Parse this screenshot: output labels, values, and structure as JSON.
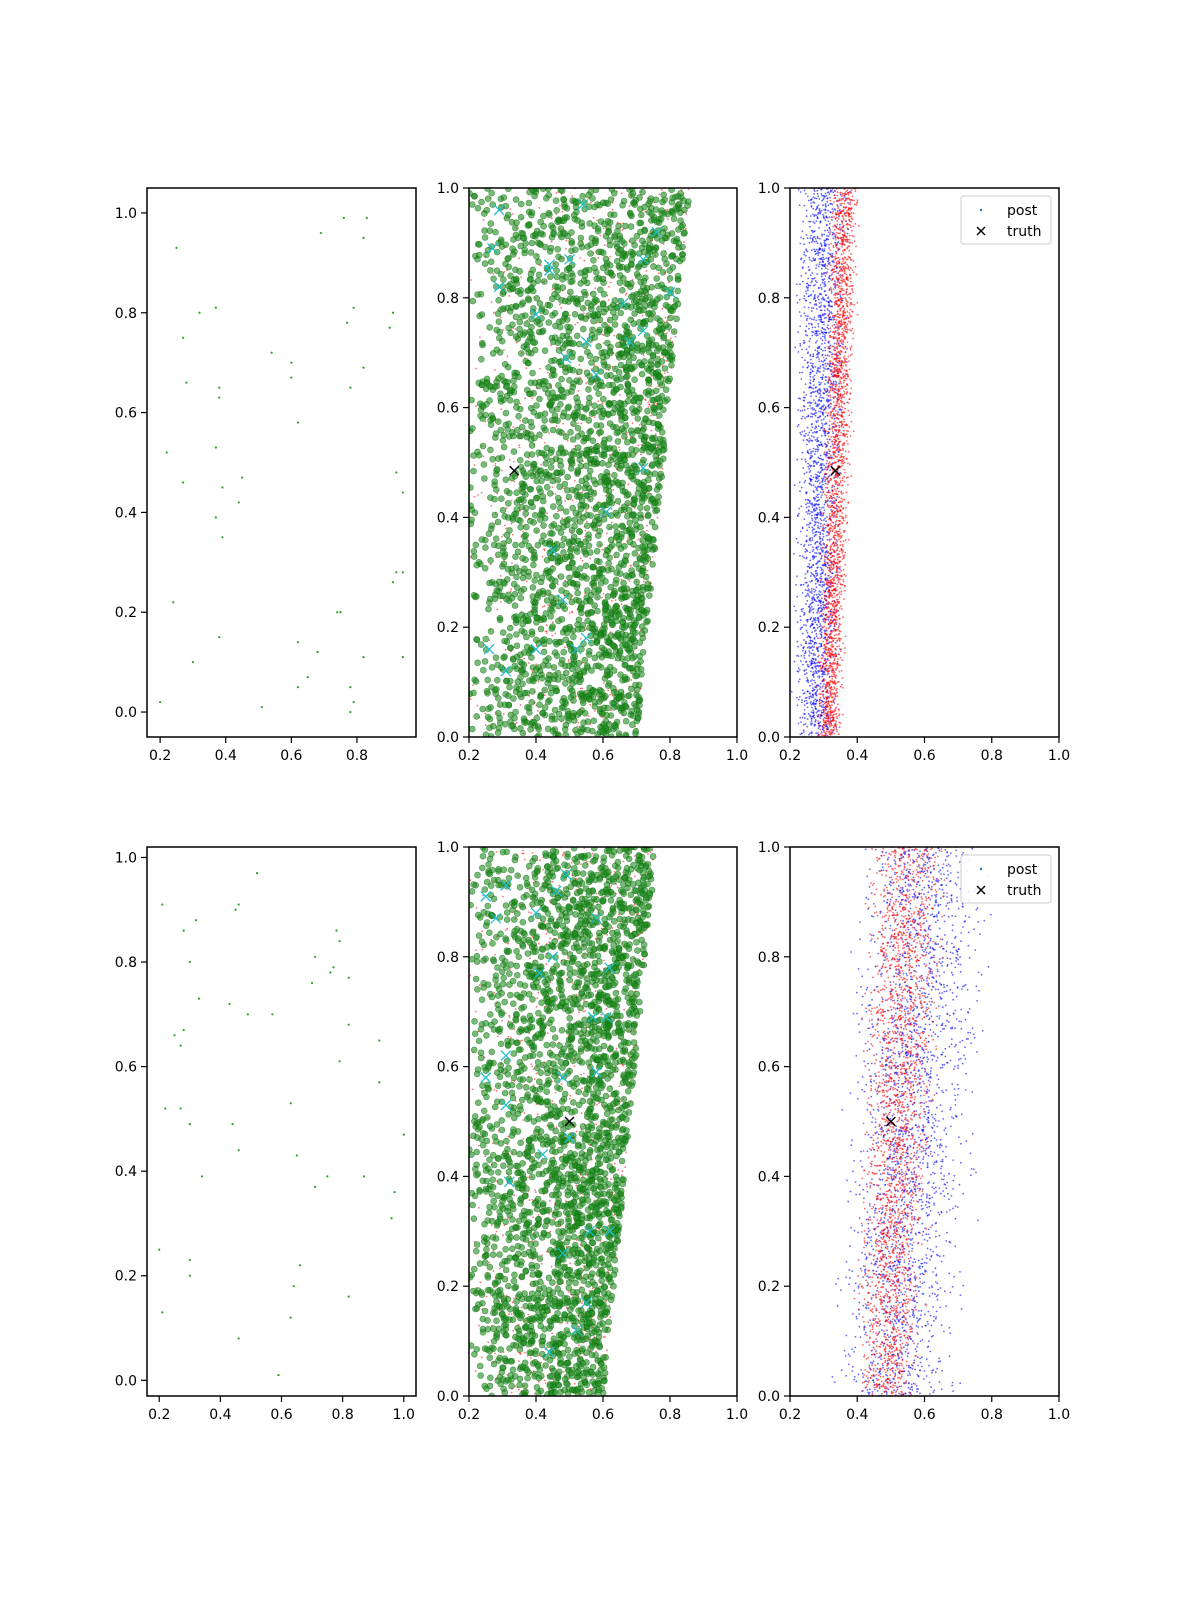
{
  "chart_data": [
    {
      "type": "scatter",
      "title": "",
      "xlabel": "",
      "ylabel": "",
      "xlim": [
        0.16,
        0.98
      ],
      "ylim": [
        -0.05,
        1.05
      ],
      "xticks": [
        "0.2",
        "0.4",
        "0.6",
        "0.8"
      ],
      "yticks": [
        "0.0",
        "0.2",
        "0.4",
        "0.6",
        "0.8",
        "1.0"
      ],
      "series": [
        {
          "color": "#2ca02c",
          "marker": "dot-small",
          "points": [
            [
              0.25,
              0.93
            ],
            [
              0.69,
              0.96
            ],
            [
              0.76,
              0.99
            ],
            [
              0.83,
              0.99
            ],
            [
              0.82,
              0.95
            ],
            [
              0.37,
              0.81
            ],
            [
              0.32,
              0.8
            ],
            [
              0.79,
              0.81
            ],
            [
              0.91,
              0.8
            ],
            [
              0.27,
              0.75
            ],
            [
              0.77,
              0.78
            ],
            [
              0.9,
              0.77
            ],
            [
              0.54,
              0.72
            ],
            [
              0.6,
              0.7
            ],
            [
              0.28,
              0.66
            ],
            [
              0.6,
              0.67
            ],
            [
              0.38,
              0.65
            ],
            [
              0.38,
              0.63
            ],
            [
              0.78,
              0.65
            ],
            [
              0.82,
              0.69
            ],
            [
              0.62,
              0.58
            ],
            [
              0.22,
              0.52
            ],
            [
              0.37,
              0.53
            ],
            [
              0.92,
              0.48
            ],
            [
              0.27,
              0.46
            ],
            [
              0.45,
              0.47
            ],
            [
              0.39,
              0.45
            ],
            [
              0.94,
              0.44
            ],
            [
              0.44,
              0.42
            ],
            [
              0.37,
              0.39
            ],
            [
              0.39,
              0.35
            ],
            [
              0.92,
              0.28
            ],
            [
              0.94,
              0.28
            ],
            [
              0.91,
              0.26
            ],
            [
              0.24,
              0.22
            ],
            [
              0.74,
              0.2
            ],
            [
              0.75,
              0.2
            ],
            [
              0.38,
              0.15
            ],
            [
              0.62,
              0.14
            ],
            [
              0.68,
              0.12
            ],
            [
              0.3,
              0.1
            ],
            [
              0.82,
              0.11
            ],
            [
              0.94,
              0.11
            ],
            [
              0.65,
              0.07
            ],
            [
              0.62,
              0.05
            ],
            [
              0.78,
              0.05
            ],
            [
              0.2,
              0.02
            ],
            [
              0.51,
              0.01
            ],
            [
              0.79,
              0.02
            ],
            [
              0.78,
              0.0
            ]
          ]
        }
      ]
    },
    {
      "type": "scatter",
      "title": "",
      "xlabel": "",
      "ylabel": "",
      "xlim": [
        0.2,
        1.0
      ],
      "ylim": [
        0.0,
        1.0
      ],
      "xticks": [
        "0.2",
        "0.4",
        "0.6",
        "0.8",
        "1.0"
      ],
      "yticks": [
        "0.0",
        "0.2",
        "0.4",
        "0.6",
        "0.8",
        "1.0"
      ],
      "clouds": [
        {
          "color": "#ff0000",
          "n": 900,
          "size": 0.9,
          "opacity": 0.55,
          "y_range": [
            0,
            1
          ],
          "x_left": [
            0.2,
            0.2
          ],
          "x_right": [
            0.7,
            0.86
          ],
          "skew": 0.6,
          "seed": 11
        },
        {
          "color": "#1e8c1e",
          "stroke": "#0b6b0b",
          "n": 2600,
          "size": 3.0,
          "opacity": 0.6,
          "y_range": [
            0,
            1
          ],
          "x_left": [
            0.2,
            0.2
          ],
          "x_right": [
            0.7,
            0.86
          ],
          "skew": 0.55,
          "seed": 23
        }
      ],
      "series": [
        {
          "color": "#17becf",
          "marker": "x",
          "points": [
            [
              0.29,
              0.96
            ],
            [
              0.27,
              0.89
            ],
            [
              0.29,
              0.82
            ],
            [
              0.54,
              0.97
            ],
            [
              0.44,
              0.86
            ],
            [
              0.44,
              0.85
            ],
            [
              0.5,
              0.87
            ],
            [
              0.4,
              0.77
            ],
            [
              0.66,
              0.79
            ],
            [
              0.72,
              0.87
            ],
            [
              0.76,
              0.92
            ],
            [
              0.72,
              0.74
            ],
            [
              0.8,
              0.81
            ],
            [
              0.55,
              0.72
            ],
            [
              0.49,
              0.69
            ],
            [
              0.58,
              0.66
            ],
            [
              0.68,
              0.72
            ],
            [
              0.45,
              0.34
            ],
            [
              0.48,
              0.25
            ],
            [
              0.26,
              0.16
            ],
            [
              0.31,
              0.12
            ],
            [
              0.4,
              0.16
            ],
            [
              0.52,
              0.16
            ],
            [
              0.55,
              0.18
            ],
            [
              0.61,
              0.41
            ],
            [
              0.72,
              0.49
            ]
          ]
        },
        {
          "name": "truth",
          "color": "#000000",
          "marker": "x",
          "points": [
            [
              0.335,
              0.485
            ]
          ]
        }
      ]
    },
    {
      "type": "scatter",
      "title": "",
      "xlabel": "",
      "ylabel": "",
      "xlim": [
        0.2,
        1.0
      ],
      "ylim": [
        0.0,
        1.0
      ],
      "xticks": [
        "0.2",
        "0.4",
        "0.6",
        "0.8",
        "1.0"
      ],
      "yticks": [
        "0.0",
        "0.2",
        "0.4",
        "0.6",
        "0.8",
        "1.0"
      ],
      "legend": {
        "position": "top-right",
        "entries": [
          {
            "label": "post",
            "marker": "dot",
            "color": "#1f77b4"
          },
          {
            "label": "truth",
            "marker": "x",
            "color": "#000000"
          }
        ]
      },
      "clouds": [
        {
          "color": "#0000ff",
          "n": 2200,
          "size": 0.9,
          "opacity": 0.6,
          "y_range": [
            0,
            1
          ],
          "x_left": [
            0.2,
            0.2
          ],
          "x_right": [
            0.35,
            0.4
          ],
          "skew": 0.0,
          "seed": 31
        },
        {
          "color": "#ff0000",
          "n": 2200,
          "size": 0.9,
          "opacity": 0.6,
          "y_range": [
            0,
            1
          ],
          "x_left": [
            0.27,
            0.31
          ],
          "x_right": [
            0.36,
            0.42
          ],
          "skew": 0.0,
          "seed": 37
        }
      ],
      "series": [
        {
          "name": "truth",
          "color": "#000000",
          "marker": "x",
          "points": [
            [
              0.335,
              0.485
            ]
          ]
        }
      ]
    },
    {
      "type": "scatter",
      "title": "",
      "xlabel": "",
      "ylabel": "",
      "xlim": [
        0.16,
        1.04
      ],
      "ylim": [
        -0.03,
        1.02
      ],
      "xticks": [
        "0.2",
        "0.4",
        "0.6",
        "0.8",
        "1.0"
      ],
      "yticks": [
        "0.0",
        "0.2",
        "0.4",
        "0.6",
        "0.8",
        "1.0"
      ],
      "series": [
        {
          "color": "#2ca02c",
          "marker": "dot-small",
          "points": [
            [
              0.52,
              0.97
            ],
            [
              0.46,
              0.91
            ],
            [
              0.45,
              0.9
            ],
            [
              0.21,
              0.91
            ],
            [
              0.32,
              0.88
            ],
            [
              0.78,
              0.86
            ],
            [
              0.28,
              0.86
            ],
            [
              0.79,
              0.84
            ],
            [
              0.3,
              0.8
            ],
            [
              0.71,
              0.81
            ],
            [
              0.76,
              0.78
            ],
            [
              0.77,
              0.79
            ],
            [
              0.82,
              0.77
            ],
            [
              0.7,
              0.76
            ],
            [
              0.33,
              0.73
            ],
            [
              0.43,
              0.72
            ],
            [
              0.57,
              0.7
            ],
            [
              0.49,
              0.7
            ],
            [
              0.82,
              0.68
            ],
            [
              0.25,
              0.66
            ],
            [
              0.28,
              0.67
            ],
            [
              0.27,
              0.64
            ],
            [
              0.92,
              0.65
            ],
            [
              0.79,
              0.61
            ],
            [
              0.92,
              0.57
            ],
            [
              0.22,
              0.52
            ],
            [
              0.27,
              0.52
            ],
            [
              0.63,
              0.53
            ],
            [
              0.3,
              0.49
            ],
            [
              0.44,
              0.49
            ],
            [
              1.0,
              0.47
            ],
            [
              0.46,
              0.44
            ],
            [
              0.65,
              0.43
            ],
            [
              0.71,
              0.37
            ],
            [
              0.75,
              0.39
            ],
            [
              0.87,
              0.39
            ],
            [
              0.34,
              0.39
            ],
            [
              0.97,
              0.36
            ],
            [
              0.96,
              0.31
            ],
            [
              0.2,
              0.25
            ],
            [
              0.3,
              0.23
            ],
            [
              0.66,
              0.22
            ],
            [
              0.3,
              0.2
            ],
            [
              0.64,
              0.18
            ],
            [
              0.82,
              0.16
            ],
            [
              0.21,
              0.13
            ],
            [
              0.63,
              0.12
            ],
            [
              0.46,
              0.08
            ],
            [
              0.59,
              0.01
            ]
          ]
        }
      ]
    },
    {
      "type": "scatter",
      "title": "",
      "xlabel": "",
      "ylabel": "",
      "xlim": [
        0.2,
        1.0
      ],
      "ylim": [
        0.0,
        1.0
      ],
      "xticks": [
        "0.2",
        "0.4",
        "0.6",
        "0.8",
        "1.0"
      ],
      "yticks": [
        "0.0",
        "0.2",
        "0.4",
        "0.6",
        "0.8",
        "1.0"
      ],
      "clouds": [
        {
          "color": "#ff0000",
          "n": 900,
          "size": 0.9,
          "opacity": 0.55,
          "y_range": [
            0,
            1
          ],
          "x_left": [
            0.2,
            0.2
          ],
          "x_right": [
            0.6,
            0.76
          ],
          "skew": 0.6,
          "seed": 41
        },
        {
          "color": "#1e8c1e",
          "stroke": "#0b6b0b",
          "n": 2600,
          "size": 3.0,
          "opacity": 0.6,
          "y_range": [
            0,
            1
          ],
          "x_left": [
            0.2,
            0.2
          ],
          "x_right": [
            0.6,
            0.76
          ],
          "skew": 0.55,
          "seed": 43
        }
      ],
      "series": [
        {
          "color": "#17becf",
          "marker": "x",
          "points": [
            [
              0.25,
              0.91
            ],
            [
              0.31,
              0.93
            ],
            [
              0.28,
              0.87
            ],
            [
              0.4,
              0.88
            ],
            [
              0.46,
              0.92
            ],
            [
              0.49,
              0.95
            ],
            [
              0.41,
              0.77
            ],
            [
              0.45,
              0.8
            ],
            [
              0.58,
              0.87
            ],
            [
              0.57,
              0.69
            ],
            [
              0.61,
              0.69
            ],
            [
              0.62,
              0.78
            ],
            [
              0.31,
              0.62
            ],
            [
              0.25,
              0.58
            ],
            [
              0.31,
              0.53
            ],
            [
              0.5,
              0.47
            ],
            [
              0.48,
              0.58
            ],
            [
              0.58,
              0.59
            ],
            [
              0.42,
              0.44
            ],
            [
              0.32,
              0.39
            ],
            [
              0.48,
              0.26
            ],
            [
              0.55,
              0.17
            ],
            [
              0.52,
              0.12
            ],
            [
              0.44,
              0.08
            ],
            [
              0.56,
              0.3
            ],
            [
              0.62,
              0.3
            ]
          ]
        },
        {
          "name": "truth",
          "color": "#000000",
          "marker": "x",
          "points": [
            [
              0.5,
              0.5
            ]
          ]
        }
      ]
    },
    {
      "type": "scatter",
      "title": "",
      "xlabel": "",
      "ylabel": "",
      "xlim": [
        0.2,
        1.0
      ],
      "ylim": [
        0.0,
        1.0
      ],
      "xticks": [
        "0.2",
        "0.4",
        "0.6",
        "0.8",
        "1.0"
      ],
      "yticks": [
        "0.0",
        "0.2",
        "0.4",
        "0.6",
        "0.8",
        "1.0"
      ],
      "legend": {
        "position": "top-right",
        "entries": [
          {
            "label": "post",
            "marker": "dot",
            "color": "#1f77b4"
          },
          {
            "label": "truth",
            "marker": "x",
            "color": "#000000"
          }
        ]
      },
      "clouds": [
        {
          "color": "#0000ff",
          "n": 2300,
          "size": 0.9,
          "opacity": 0.6,
          "y_range": [
            0,
            1
          ],
          "x_left": [
            0.3,
            0.36
          ],
          "x_right": [
            0.73,
            0.84
          ],
          "skew": 0.0,
          "seed": 51
        },
        {
          "color": "#ff0000",
          "n": 2300,
          "size": 0.9,
          "opacity": 0.6,
          "y_range": [
            0,
            1
          ],
          "x_left": [
            0.38,
            0.4
          ],
          "x_right": [
            0.6,
            0.7
          ],
          "skew": 0.0,
          "seed": 53
        }
      ],
      "series": [
        {
          "name": "truth",
          "color": "#000000",
          "marker": "x",
          "points": [
            [
              0.5,
              0.5
            ]
          ]
        }
      ]
    }
  ]
}
